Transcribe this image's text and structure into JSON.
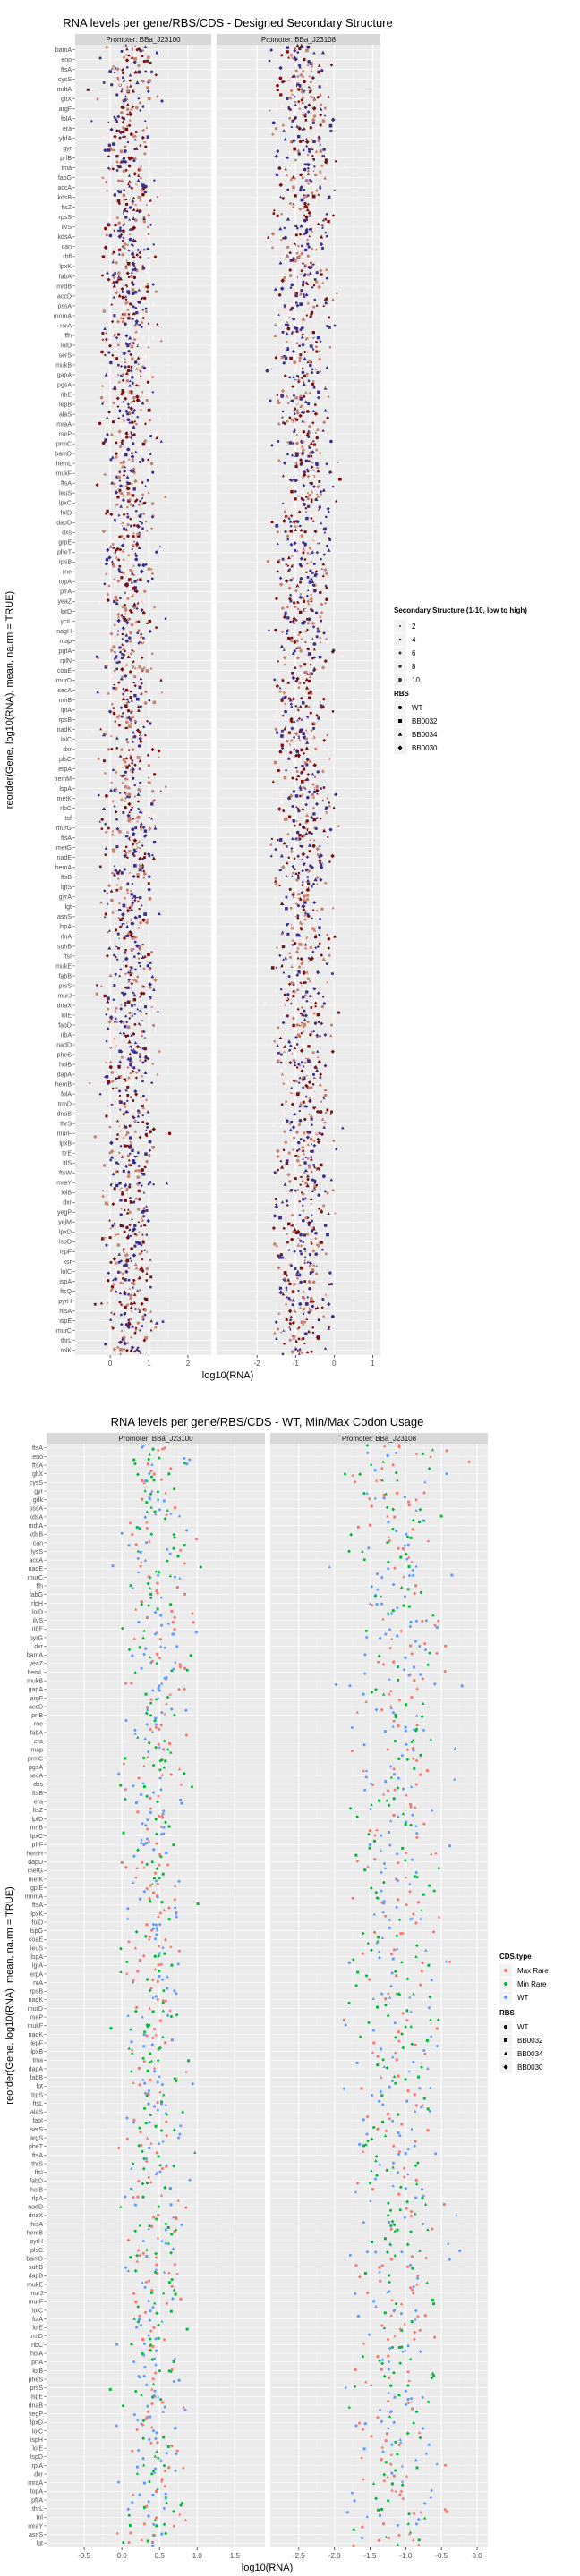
{
  "chart_data": [
    {
      "type": "scatter",
      "title": "RNA levels per gene/RBS/CDS - Designed Secondary Structure",
      "xlabel": "log10(RNA)",
      "ylabel": "reorder(Gene, log10(RNA), mean, na.rm = TRUE)",
      "facets": [
        "Promoter: BBa_J23100",
        "Promoter: BBa_J23108"
      ],
      "xlim_by_facet": [
        [
          -0.9,
          2.6
        ],
        [
          -3.05,
          1.2
        ]
      ],
      "xticks_by_facet": [
        [
          0,
          1,
          2
        ],
        [
          -2,
          -1,
          0,
          1
        ]
      ],
      "genes": [
        "bamA",
        "eno",
        "ftsA",
        "cysS",
        "mdtA",
        "gltX",
        "argF",
        "folA",
        "era",
        "ybfA",
        "gyr",
        "prfB",
        "tma",
        "fabG",
        "accA",
        "kdsB",
        "ftsZ",
        "rpsS",
        "ilvS",
        "kdsA",
        "can",
        "rbfl",
        "lpxK",
        "fabA",
        "mrdB",
        "accD",
        "pssA",
        "mnmA",
        "rsrA",
        "ffh",
        "lolD",
        "serS",
        "mukB",
        "gapA",
        "pgsA",
        "ribE",
        "lepB",
        "alaS",
        "mraA",
        "rseP",
        "prmC",
        "bamD",
        "hemL",
        "mukF",
        "ftsA",
        "leuS",
        "lpxC",
        "folD",
        "dapD",
        "dxs",
        "grpE",
        "pheT",
        "rpsB",
        "rne",
        "topA",
        "pfrA",
        "yeaZ",
        "lptD",
        "yciL",
        "nagH",
        "map",
        "pgtA",
        "rplN",
        "coaE",
        "murD",
        "secA",
        "mnB",
        "lptA",
        "rpsB",
        "nadK",
        "lolC",
        "dxr",
        "plsC",
        "erpA",
        "hemM",
        "lspA",
        "metK",
        "rlbC",
        "tsf",
        "murG",
        "ftsA",
        "metG",
        "nadE",
        "hemA",
        "ftsB",
        "lgtS",
        "gyrA",
        "lgt",
        "asnS",
        "lspA",
        "rlnA",
        "suhB",
        "ftsI",
        "mukE",
        "fabB",
        "prsS",
        "murJ",
        "dnaX",
        "lolE",
        "fabD",
        "ribA",
        "nadD",
        "pheS",
        "holB",
        "dapA",
        "hemB",
        "folA",
        "trmD",
        "dnaB",
        "thrS",
        "murF",
        "lpxB",
        "ttrE",
        "ltlS",
        "ftsW",
        "mraY",
        "lolB",
        "dxr",
        "yegP",
        "yejM",
        "lpxD",
        "lspD",
        "ispF",
        "ksr",
        "lolC",
        "ispA",
        "ftsQ",
        "pyrH",
        "hisA",
        "ispE",
        "murC",
        "thrL",
        "tolK"
      ],
      "size_legend": {
        "title": "Secondary Structure (1-10, low to high)",
        "values": [
          "2",
          "4",
          "6",
          "8",
          "10"
        ]
      },
      "shape_legend": {
        "title": "RBS",
        "values": [
          "WT",
          "BB0032",
          "BB0034",
          "BB0030"
        ]
      },
      "colors": {
        "low": "#fcf0ec",
        "mid": "#c9806e",
        "high": "#7a1010",
        "alt": "#3b2f8c"
      },
      "points_per_gene": 18,
      "x_center_by_facet": [
        0.5,
        -0.8
      ],
      "x_spread_by_facet": [
        0.7,
        0.75
      ]
    },
    {
      "type": "scatter",
      "title": "RNA levels per gene/RBS/CDS - WT, Min/Max Codon Usage",
      "xlabel": "log10(RNA)",
      "ylabel": "reorder(Gene, log10(RNA), mean, na.rm = TRUE)",
      "facets": [
        "Promoter: BBa_J23100",
        "Promoter: BBa_J23108"
      ],
      "xlim_by_facet": [
        [
          -1.0,
          1.9
        ],
        [
          -2.9,
          0.15
        ]
      ],
      "xticks_by_facet": [
        [
          -0.5,
          0.0,
          0.5,
          1.0,
          1.5
        ],
        [
          -2.5,
          -2.0,
          -1.5,
          -1.0,
          -0.5,
          0.0
        ]
      ],
      "xticklabels_by_facet": [
        [
          "-0.5",
          "0.0",
          "0.5",
          "1.0",
          "1.5"
        ],
        [
          "-2.5",
          "-2.0",
          "-1.5",
          "-1.0",
          "-0.5",
          "0.0"
        ]
      ],
      "genes": [
        "ftsA",
        "eno",
        "ftsA",
        "gltX",
        "cysS",
        "gyr",
        "gdk",
        "pssA",
        "kdsA",
        "mdtA",
        "kdsB",
        "can",
        "lysS",
        "accA",
        "nadE",
        "murC",
        "ffh",
        "fabG",
        "rlpH",
        "lolD",
        "ilvS",
        "ribE",
        "pyrG",
        "dxr",
        "bamA",
        "yeaZ",
        "hemL",
        "mukB",
        "gapA",
        "argF",
        "accD",
        "prfB",
        "rne",
        "fabA",
        "era",
        "map",
        "prmC",
        "pgsA",
        "secA",
        "dxs",
        "ftsB",
        "era",
        "ftsZ",
        "lptD",
        "mnB",
        "lpxC",
        "pfrF",
        "hemH",
        "dapD",
        "metG",
        "metK",
        "gplE",
        "mnmA",
        "ftsA",
        "lpxK",
        "folD",
        "lspG",
        "coaE",
        "leuS",
        "lspA",
        "lgtA",
        "erpA",
        "nrA",
        "rpsB",
        "nadK",
        "murD",
        "rseP",
        "mukF",
        "nadK",
        "lepF",
        "lpxB",
        "tma",
        "dapA",
        "fabB",
        "lpt",
        "trpS",
        "ftsL",
        "alaS",
        "fabI",
        "serS",
        "argS",
        "pheT",
        "ftsA",
        "thrS",
        "ftsI",
        "fabD",
        "holB",
        "rlpA",
        "nadD",
        "dnaX",
        "hisA",
        "hemB",
        "pyrH",
        "plsC",
        "bamD",
        "suhB",
        "dapB",
        "mukE",
        "murJ",
        "murF",
        "lolC",
        "folA",
        "lolE",
        "trmD",
        "rlbC",
        "holA",
        "prfA",
        "lolB",
        "pheS",
        "prsS",
        "ispE",
        "dnaB",
        "yegP",
        "lpxD",
        "lolC",
        "ispH",
        "lolE",
        "lspD",
        "rplA",
        "dxr",
        "mraA",
        "topA",
        "pfrA",
        "thrL",
        "tnl",
        "mraY",
        "asnS",
        "lgt"
      ],
      "color_legend": {
        "title": "CDS.type",
        "values": [
          "Max Rare",
          "Min Rare",
          "WT"
        ]
      },
      "shape_legend": {
        "title": "RBS",
        "values": [
          "WT",
          "BB0032",
          "BB0034",
          "BB0030"
        ]
      },
      "colors": {
        "Max Rare": "#f8766d",
        "Min Rare": "#00ba38",
        "WT": "#619cff"
      },
      "points_per_gene": 6,
      "x_center_by_facet": [
        0.45,
        -1.1
      ],
      "x_spread_by_facet": [
        0.45,
        0.7
      ]
    }
  ]
}
